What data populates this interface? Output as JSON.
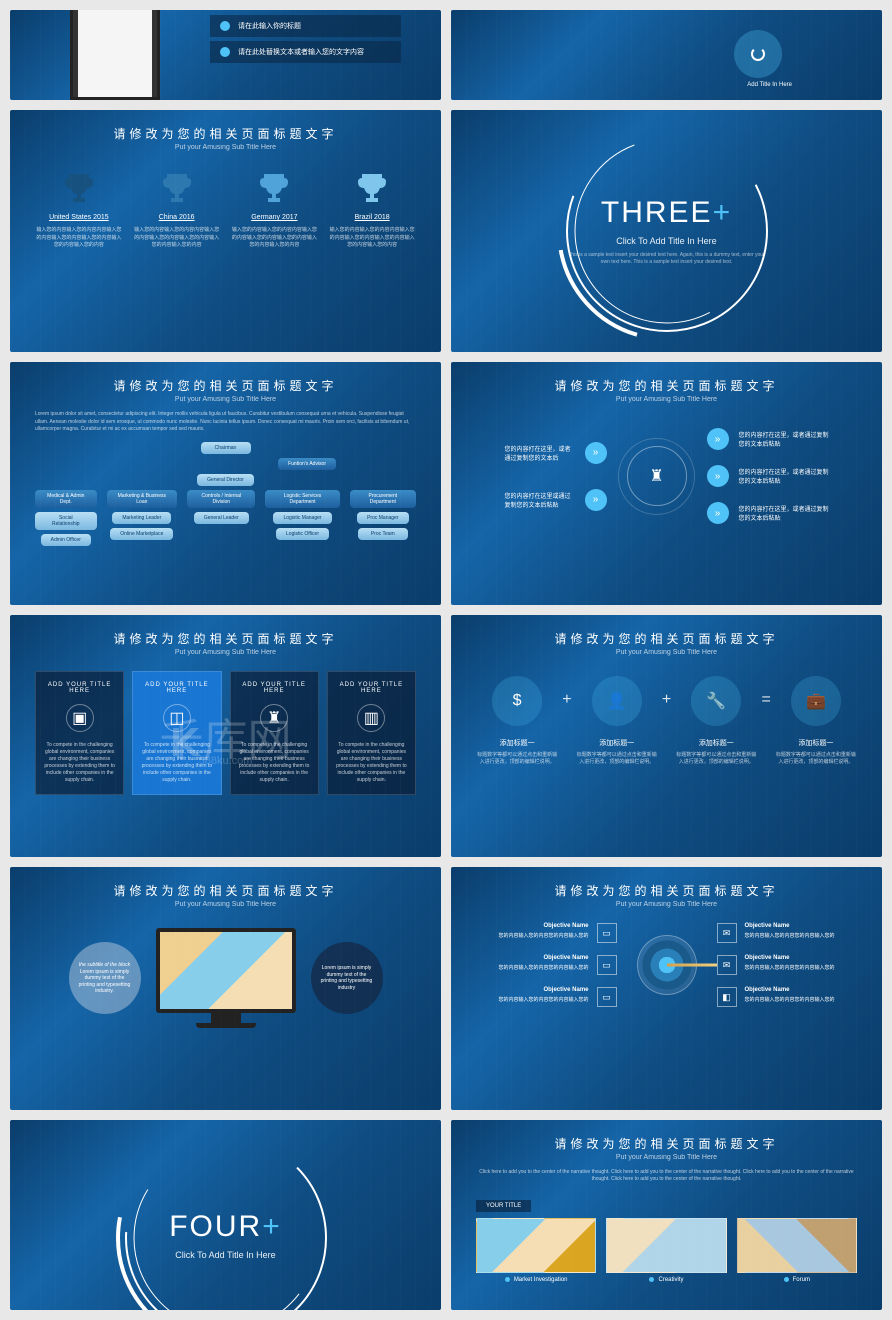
{
  "common": {
    "title_cn": "请修改为您的相关页面标题文字",
    "subtitle_en": "Put your Amusing Sub Title Here",
    "colors": {
      "bg_grad_from": "#0a3d6b",
      "bg_grad_mid": "#1565a8",
      "accent": "#4fc3f7",
      "box_grad_from": "#3a8cc7",
      "box_grad_to": "#1e5f9e"
    }
  },
  "watermark": {
    "text": "千库网",
    "sub": "588ku.com"
  },
  "s1": {
    "line1": "请在此输入你的标题",
    "line2": "请在此处替换文本或者输入您的文字内容"
  },
  "s2": {
    "label": "Add Title In Here"
  },
  "trophies": {
    "cols": [
      {
        "label": "United States 2015",
        "color": "#17517f"
      },
      {
        "label": "China 2016",
        "color": "#2e78b0"
      },
      {
        "label": "Germany 2017",
        "color": "#4fa3d9"
      },
      {
        "label": "Brazil 2018",
        "color": "#7fc6ed"
      }
    ],
    "desc": "输入您的内容输入您的内容内容输入您的内容输入您的内容输入您的内容输入您的内容输入您的内容"
  },
  "section_three": {
    "label": "THREE",
    "plus": "+",
    "sub": "Click To Add Title In Here",
    "desc": "This is a sample text insert your desired text here. Again, this is a dummy text, enter your own text here. This is a sample text insert your desired text."
  },
  "section_four": {
    "label": "FOUR",
    "plus": "+",
    "sub": "Click To Add Title In Here"
  },
  "org": {
    "intro": "Lorem ipsum dolor sit amet, consectetur adipiscing elit. Integer mollis vehicula ligula ut faucibus. Curabitur vestibulum consequat urna et vehicula. Suspendisse feugiat ullam. Aenean molestie dolor id sem erosque, ut commodo nunc molestie. Nunc lacinia tellus ipsum. Donec consequat mi mauris. Proin sem orci, facilisis at bibendum ut, ullamcorper magna. Curabitur et mi ac ex accumsan tempor sed sed mauris.",
    "l1": "Chairman",
    "l2": "Funtion's Advisor",
    "l3": "General Director",
    "cols": [
      {
        "h": "Medical & Admin Dept.",
        "s1": "Social Relationship",
        "s2": "Admin Officer"
      },
      {
        "h": "Marketing & Business Loan",
        "s1": "Marketing Leader",
        "s2": "Online Marketplace"
      },
      {
        "h": "Controls / Internal Division",
        "s1": "General Leader",
        "s2": ""
      },
      {
        "h": "Logistic Services Department",
        "s1": "Logistic Manager",
        "s2": "Logistic Officer"
      },
      {
        "h": "Procurement Department",
        "s1": "Proc Manager",
        "s2": "Proc Team"
      }
    ]
  },
  "flow": {
    "left1": "您的内容打在这里，或者通过复制您的文本后",
    "left2": "您的内容打在这里或通过复制您的文本后粘贴",
    "r1": "您的内容打在这里，或者通过复制您的文本后粘贴",
    "r2": "您的内容打在这里，或者通过复制您的文本后粘贴",
    "r3": "您的内容打在这里，或者通过复制您的文本后粘贴"
  },
  "cards": {
    "items": [
      {
        "t": "ADD YOUR TITLE HERE",
        "hl": false
      },
      {
        "t": "ADD YOUR TITLE HERE",
        "hl": true
      },
      {
        "t": "ADD YOUR TITLE HERE",
        "hl": false
      },
      {
        "t": "ADD YOUR TITLE HERE",
        "hl": false
      }
    ],
    "desc": "To compete in the challenging global environment, companies are changing their business processes by extending them to include other companies in the supply chain."
  },
  "eq": {
    "title": "添加标题一",
    "desc": "标题数字等都可以通过点击和重新输入进行更改，顶部的编辑栏说明。"
  },
  "bubbles": {
    "b1_t": "the subtitle of the block",
    "b1": "Lorem ipsum is simply dummy text of the printing and typesetting industry.",
    "b2": "Lorem ipsum is simply dummy text of the printing and typesetting industry"
  },
  "target": {
    "h": "Objective Name",
    "d": "您的内容输入您的内容您的内容输入您的"
  },
  "gallery": {
    "intro": "Click here to add you to the center of the narrative thought. Click here to add you to the center of the narrative thought. Click here to add you to the center of the narrative thought. Click here to add you to the center of the narrative thought.",
    "tab": "YOUR TITLE",
    "caps": [
      "Market Investigation",
      "Creativity",
      "Forum"
    ]
  }
}
